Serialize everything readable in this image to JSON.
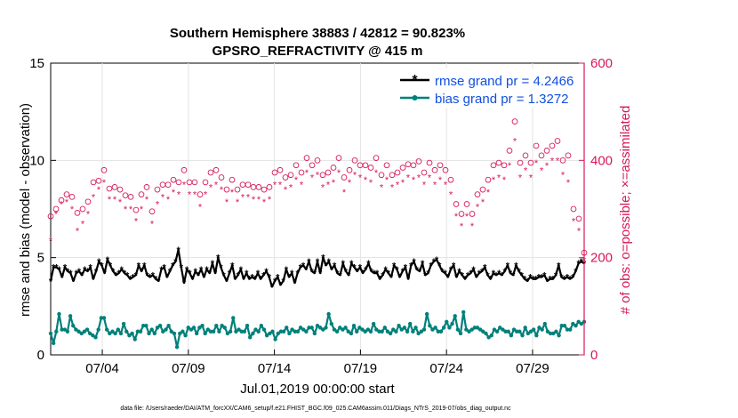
{
  "chart_data": {
    "type": "line",
    "title": "Southern Hemisphere 38883 / 42812 = 90.823%",
    "subtitle": "GPSRO_REFRACTIVITY @ 415 m",
    "xlabel": "Jul.01,2019 00:00:00 start",
    "ylabel": "rmse and bias (model - observation)",
    "y2label": "# of obs: o=possible; ×=assimilated",
    "footer": "data file: /Users/raeder/DAI/ATM_forcXX/CAM6_setup/f.e21.FHIST_BGC.f09_025.CAM6assim.011/Diags_NTrS_2019-07/obs_diag_output.nc",
    "x_range": [
      1.0,
      32.0
    ],
    "ylim": [
      0,
      15
    ],
    "y2lim": [
      0,
      600
    ],
    "x_ticks": [
      4,
      9,
      14,
      19,
      24,
      29
    ],
    "x_tick_labels": [
      "07/04",
      "07/09",
      "07/14",
      "07/19",
      "07/24",
      "07/29"
    ],
    "y_ticks": [
      0,
      5,
      10,
      15
    ],
    "y2_ticks": [
      0,
      200,
      400,
      600
    ],
    "legend_position": "top-right",
    "colors": {
      "rmse": "#000000",
      "bias": "#00807a",
      "obs": "#d6185a",
      "legend_text": "#0f4fe0",
      "y2_axis": "#d6185a"
    },
    "series": [
      {
        "name": "rmse grand pr = 4.2466",
        "marker": "*",
        "values": [
          3.8,
          4.5,
          4.5,
          4.4,
          4.0,
          4.5,
          4.3,
          4.2,
          3.8,
          4.2,
          4.3,
          4.1,
          4.4,
          4.3,
          4.5,
          3.9,
          4.3,
          4.8,
          4.6,
          4.2,
          4.9,
          4.6,
          4.3,
          4.1,
          4.2,
          4.4,
          4.2,
          4.1,
          3.9,
          4.0,
          4.1,
          4.6,
          4.3,
          4.6,
          4.1,
          4.0,
          4.1,
          3.9,
          3.8,
          4.4,
          4.5,
          4.0,
          4.3,
          4.6,
          4.8,
          5.4,
          4.5,
          3.7,
          4.4,
          4.2,
          3.9,
          4.3,
          4.1,
          4.4,
          4.0,
          4.4,
          4.2,
          4.7,
          4.2,
          5.0,
          4.5,
          4.1,
          3.8,
          4.2,
          4.6,
          3.9,
          4.1,
          4.4,
          3.9,
          4.2,
          3.9,
          4.0,
          3.9,
          4.2,
          3.9,
          4.1,
          4.3,
          4.0,
          3.5,
          3.8,
          4.0,
          3.6,
          3.8,
          4.4,
          4.0,
          4.2,
          3.7,
          4.2,
          4.5,
          4.6,
          4.4,
          4.8,
          4.3,
          4.2,
          4.8,
          4.2,
          5.0,
          4.6,
          4.8,
          4.4,
          4.6,
          4.2,
          4.1,
          4.7,
          4.3,
          4.1,
          4.7,
          4.5,
          4.3,
          4.5,
          4.2,
          4.4,
          4.7,
          4.3,
          4.2,
          4.2,
          3.9,
          4.1,
          4.4,
          4.2,
          4.0,
          4.6,
          4.4,
          4.0,
          4.3,
          4.5,
          3.9,
          4.6,
          4.8,
          4.4,
          4.3,
          4.7,
          4.1,
          4.2,
          4.6,
          4.8,
          4.9,
          4.6,
          4.3,
          4.2,
          4.0,
          4.4,
          4.6,
          4.0,
          4.3,
          4.1,
          3.9,
          4.1,
          4.2,
          4.4,
          4.0,
          4.2,
          4.3,
          4.5,
          4.1,
          3.9,
          4.2,
          4.1,
          4.2,
          4.1,
          4.3,
          4.6,
          4.2,
          4.1,
          4.6,
          4.3,
          4.1,
          3.9,
          3.8,
          4.0,
          3.9,
          3.9,
          4.0,
          4.0,
          4.1,
          3.8,
          3.9,
          3.9,
          4.1,
          4.6,
          4.0,
          3.9,
          4.0,
          3.9,
          4.0,
          4.3,
          4.7,
          4.8,
          4.7
        ]
      },
      {
        "name": "bias grand pr = 1.3272",
        "marker": "o",
        "values": [
          1.1,
          0.6,
          1.2,
          2.1,
          1.3,
          1.3,
          1.2,
          2.0,
          1.5,
          1.3,
          1.2,
          1.1,
          1.2,
          1.3,
          1.1,
          1.0,
          0.9,
          1.3,
          1.9,
          1.9,
          1.3,
          1.1,
          1.2,
          1.1,
          1.3,
          1.1,
          1.6,
          1.2,
          1.0,
          1.1,
          0.8,
          1.2,
          1.2,
          1.5,
          1.5,
          1.1,
          1.3,
          1.1,
          1.4,
          1.5,
          1.2,
          1.3,
          1.5,
          1.2,
          1.1,
          0.4,
          1.1,
          1.2,
          1.0,
          1.4,
          1.3,
          1.4,
          1.1,
          1.4,
          1.5,
          1.1,
          1.3,
          1.2,
          1.2,
          1.5,
          1.2,
          1.5,
          1.4,
          1.1,
          1.2,
          1.9,
          1.2,
          1.3,
          1.2,
          1.2,
          1.5,
          0.9,
          1.1,
          1.3,
          1.2,
          1.5,
          1.3,
          1.0,
          1.1,
          1.2,
          0.8,
          1.1,
          1.2,
          1.2,
          1.4,
          1.1,
          1.3,
          1.2,
          1.2,
          1.4,
          1.3,
          1.2,
          1.4,
          1.4,
          1.1,
          1.5,
          1.4,
          1.3,
          1.4,
          2.1,
          1.6,
          1.3,
          1.2,
          1.4,
          1.3,
          1.4,
          1.2,
          1.1,
          1.5,
          1.2,
          1.4,
          1.3,
          1.2,
          1.3,
          1.2,
          1.6,
          1.3,
          1.2,
          1.2,
          1.4,
          1.2,
          1.1,
          1.3,
          1.2,
          1.5,
          1.3,
          1.4,
          1.2,
          1.6,
          1.2,
          1.4,
          1.1,
          1.2,
          1.3,
          2.1,
          1.5,
          1.3,
          1.4,
          1.2,
          1.2,
          1.4,
          1.7,
          1.4,
          1.6,
          2.0,
          1.3,
          1.1,
          2.2,
          1.3,
          1.2,
          1.3,
          1.4,
          1.4,
          1.3,
          1.2,
          1.1,
          0.9,
          1.0,
          1.3,
          1.2,
          1.4,
          1.3,
          1.2,
          1.2,
          1.0,
          1.3,
          1.2,
          1.2,
          1.0,
          1.4,
          1.1,
          1.2,
          1.3,
          1.0,
          1.4,
          1.3,
          1.6,
          1.2,
          1.1,
          1.1,
          1.2,
          1.0,
          1.5,
          1.5,
          1.3,
          1.3,
          1.6,
          1.5,
          1.7,
          1.6,
          1.7
        ]
      },
      {
        "name": "obs possible",
        "marker": "o",
        "axis": "right",
        "values": [
          285,
          262,
          300,
          305,
          318,
          342,
          330,
          335,
          325,
          293,
          292,
          295,
          300,
          350,
          315,
          330,
          355,
          357,
          358,
          355,
          380,
          370,
          342,
          353,
          345,
          350,
          340,
          335,
          328,
          292,
          325,
          272,
          298,
          338,
          330,
          325,
          345,
          340,
          295,
          345,
          340,
          330,
          350,
          355,
          350,
          352,
          360,
          345,
          355,
          350,
          380,
          360,
          355,
          340,
          355,
          335,
          330,
          345,
          355,
          360,
          375,
          390,
          380,
          370,
          365,
          355,
          340,
          355,
          360,
          365,
          340,
          330,
          350,
          345,
          350,
          355,
          345,
          330,
          345,
          335,
          340,
          350,
          345,
          365,
          375,
          385,
          380,
          370,
          365,
          375,
          370,
          365,
          390,
          380,
          375,
          390,
          405,
          385,
          390,
          380,
          400,
          395,
          370,
          380,
          375,
          390,
          385,
          380,
          405,
          395,
          365,
          370,
          380,
          385,
          400,
          410,
          390,
          385,
          390,
          370,
          385,
          395,
          405,
          380,
          370,
          385,
          390,
          380,
          370,
          390,
          375,
          395,
          385,
          380,
          392,
          380,
          390,
          370,
          398,
          402,
          375,
          385,
          395,
          385,
          380,
          395,
          390,
          385,
          380,
          375,
          360,
          330,
          310,
          270,
          290,
          300,
          310,
          285,
          290,
          305,
          330,
          345,
          340,
          355,
          360,
          375,
          390,
          400,
          395,
          405,
          390,
          380,
          420,
          400,
          480,
          440,
          395,
          390,
          410,
          420,
          395,
          420,
          430,
          415,
          410,
          430,
          420,
          410,
          430,
          425,
          440,
          420,
          400,
          420,
          410,
          305,
          300,
          295,
          280,
          200,
          210
        ]
      },
      {
        "name": "obs assimilated",
        "marker": "×",
        "axis": "right",
        "values": [
          235,
          265,
          290,
          275,
          310,
          320,
          315,
          305,
          300,
          265,
          255,
          260,
          270,
          320,
          290,
          305,
          325,
          330,
          340,
          320,
          355,
          340,
          320,
          330,
          320,
          325,
          315,
          310,
          300,
          265,
          300,
          250,
          275,
          310,
          300,
          295,
          320,
          315,
          270,
          315,
          310,
          305,
          325,
          330,
          320,
          330,
          335,
          320,
          330,
          325,
          350,
          340,
          330,
          315,
          330,
          310,
          305,
          320,
          330,
          335,
          345,
          360,
          350,
          345,
          340,
          330,
          315,
          330,
          335,
          340,
          315,
          305,
          325,
          320,
          325,
          330,
          320,
          305,
          320,
          310,
          315,
          325,
          320,
          340,
          350,
          355,
          350,
          345,
          340,
          350,
          345,
          340,
          360,
          355,
          350,
          360,
          375,
          360,
          365,
          355,
          370,
          365,
          345,
          355,
          350,
          360,
          355,
          350,
          375,
          365,
          335,
          345,
          355,
          360,
          370,
          380,
          365,
          355,
          360,
          345,
          355,
          365,
          375,
          355,
          345,
          355,
          360,
          355,
          345,
          360,
          350,
          365,
          355,
          350,
          365,
          355,
          360,
          345,
          365,
          370,
          350,
          355,
          365,
          355,
          350,
          365,
          360,
          355,
          350,
          345,
          330,
          305,
          285,
          245,
          265,
          275,
          285,
          260,
          265,
          280,
          305,
          320,
          315,
          330,
          335,
          345,
          360,
          370,
          365,
          375,
          360,
          355,
          390,
          370,
          440,
          410,
          365,
          360,
          380,
          390,
          365,
          390,
          395,
          385,
          380,
          395,
          390,
          380,
          400,
          390,
          400,
          390,
          370,
          390,
          355,
          280,
          275,
          270,
          255,
          185,
          195
        ]
      }
    ]
  }
}
